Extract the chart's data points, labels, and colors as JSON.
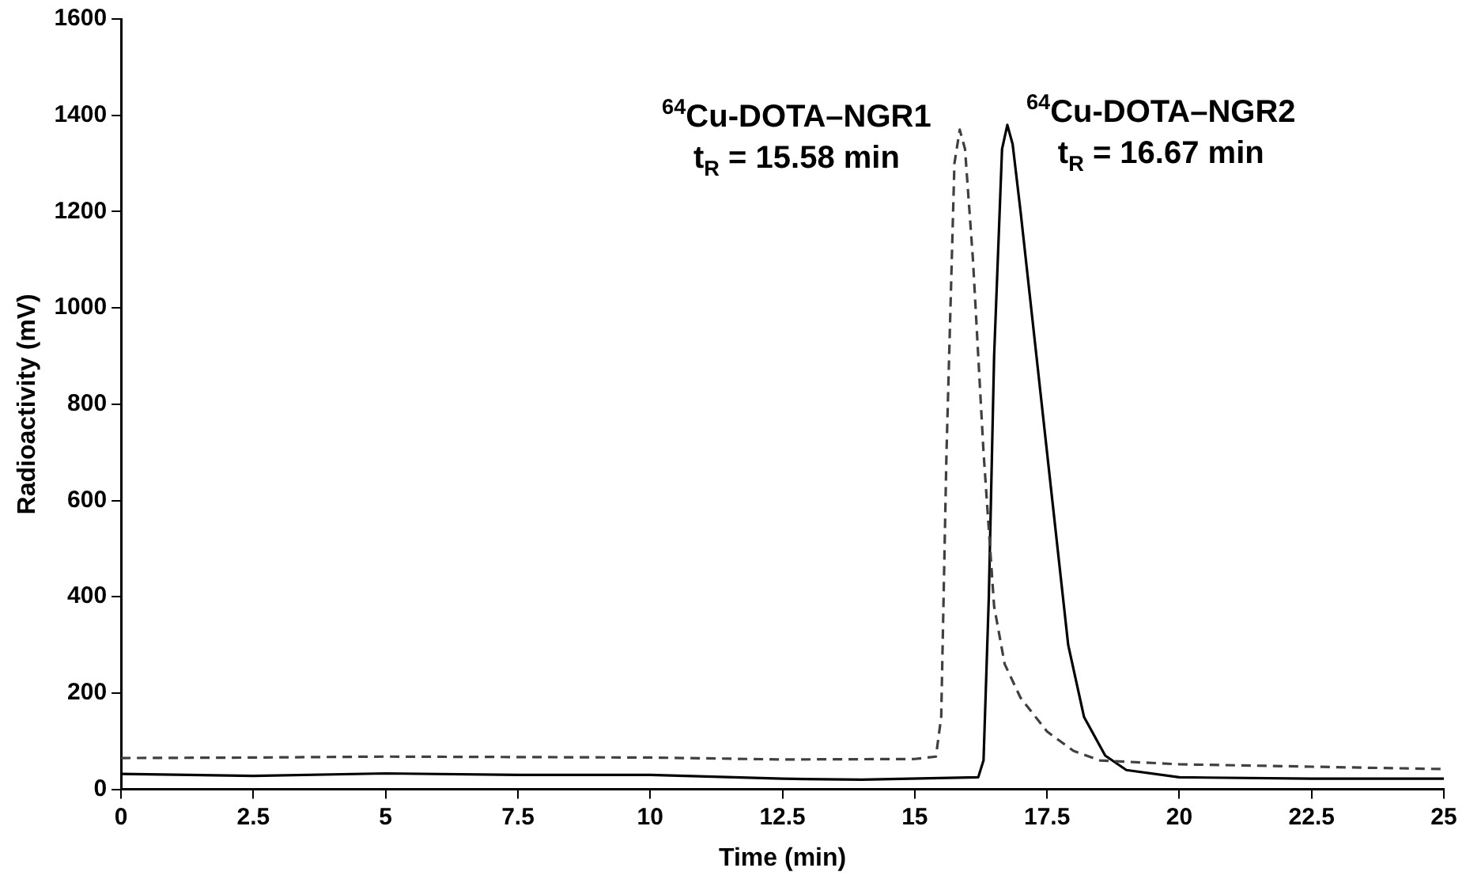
{
  "chart_data": {
    "type": "line",
    "xlabel": "Time (min)",
    "ylabel": "Radioactivity (mV)",
    "xlim": [
      0,
      25
    ],
    "xticks": [
      0,
      2.5,
      5,
      7.5,
      10,
      12.5,
      15,
      17.5,
      20,
      22.5,
      25
    ],
    "ylim": [
      0,
      1600
    ],
    "yticks": [
      0,
      200,
      400,
      600,
      800,
      1000,
      1200,
      1400,
      1600
    ],
    "grid": false,
    "legend": false,
    "marker": "none",
    "annotations": [
      "$^{64}$Cu-DOTA–NGR1\nt$_{R}$ = 15.58 min",
      "$^{64}$Cu-DOTA–NGR2\nt$_{R}$ = 16.67 min"
    ],
    "series": [
      {
        "color": "#404040",
        "line_style": "dashed",
        "x": [
          0,
          2.5,
          5,
          7.5,
          10,
          12.5,
          15,
          15.4,
          15.5,
          15.6,
          15.75,
          15.85,
          15.95,
          16.1,
          16.3,
          16.5,
          16.7,
          17,
          17.5,
          18,
          18.5,
          20,
          22.5,
          25
        ],
        "values": [
          65,
          66,
          68,
          67,
          66,
          62,
          63,
          68,
          150,
          700,
          1300,
          1370,
          1330,
          1100,
          700,
          380,
          260,
          190,
          120,
          80,
          60,
          52,
          47,
          42
        ]
      },
      {
        "color": "#000000",
        "line_style": "solid",
        "x": [
          0,
          2.5,
          5,
          7.5,
          10,
          12.5,
          14,
          16.2,
          16.3,
          16.4,
          16.5,
          16.65,
          16.75,
          16.85,
          17,
          17.3,
          17.6,
          17.9,
          18.2,
          18.6,
          19,
          20,
          22.5,
          25
        ],
        "values": [
          32,
          28,
          33,
          30,
          30,
          22,
          20,
          25,
          60,
          400,
          900,
          1330,
          1380,
          1340,
          1200,
          900,
          600,
          300,
          150,
          70,
          40,
          25,
          22,
          22
        ]
      }
    ]
  }
}
